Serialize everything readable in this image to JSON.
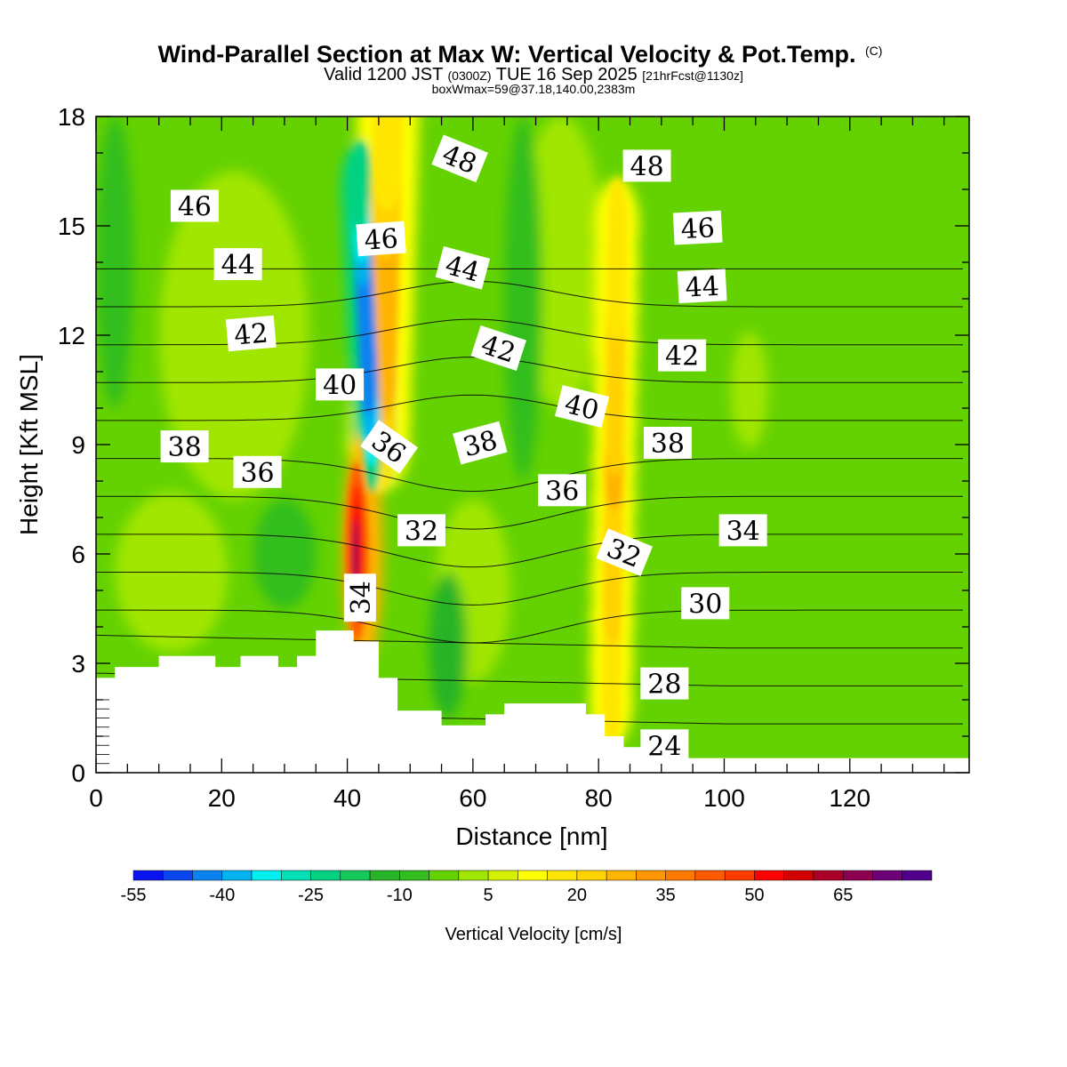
{
  "chart_data": {
    "type": "heatmap",
    "title": "Wind-Parallel Section at Max W: Vertical Velocity & Pot.Temp.",
    "title_mark": "(C)",
    "subtitle": {
      "prefix": "Valid 1200 JST",
      "zulu": "(0300Z)",
      "date": "TUE 16 Sep 2025",
      "forecast": "[21hrFcst@1130z]"
    },
    "box_info": "boxWmax=59@37.18,140.00,2383m",
    "xlabel": "Distance [nm]",
    "ylabel": "Height [Kft MSL]",
    "xlim": [
      0,
      139
    ],
    "ylim": [
      0,
      18
    ],
    "x_ticks": [
      0,
      20,
      40,
      60,
      80,
      100,
      120
    ],
    "y_ticks": [
      0,
      3,
      6,
      9,
      12,
      15,
      18
    ],
    "colorbar": {
      "title": "Vertical Velocity [cm/s]",
      "min": -55,
      "max": 80,
      "step": 5,
      "labels": [
        "-55",
        "-40",
        "-25",
        "-10",
        "5",
        "20",
        "35",
        "50",
        "65"
      ],
      "colors": [
        "#0a14f0",
        "#0a46f0",
        "#0a82f0",
        "#00b4f0",
        "#00f0f0",
        "#00e0b4",
        "#00d282",
        "#14c85a",
        "#28b428",
        "#32be1e",
        "#64d200",
        "#a0e600",
        "#d2f000",
        "#ffff00",
        "#ffe600",
        "#ffd200",
        "#ffb400",
        "#ff9600",
        "#ff7800",
        "#ff5a00",
        "#ff3c00",
        "#ff0000",
        "#d20000",
        "#aa0028",
        "#8c0050",
        "#6e0078",
        "#50008c"
      ]
    },
    "terrain": [
      [
        0,
        2.6
      ],
      [
        3,
        2.6
      ],
      [
        3,
        2.9
      ],
      [
        10,
        2.9
      ],
      [
        10,
        3.2
      ],
      [
        19,
        3.2
      ],
      [
        19,
        2.9
      ],
      [
        23,
        2.9
      ],
      [
        23,
        3.2
      ],
      [
        29,
        3.2
      ],
      [
        29,
        2.9
      ],
      [
        32,
        2.9
      ],
      [
        32,
        3.2
      ],
      [
        35,
        3.2
      ],
      [
        35,
        3.9
      ],
      [
        41,
        3.9
      ],
      [
        41,
        3.6
      ],
      [
        45,
        3.6
      ],
      [
        45,
        2.6
      ],
      [
        48,
        2.6
      ],
      [
        48,
        1.7
      ],
      [
        55,
        1.7
      ],
      [
        55,
        1.3
      ],
      [
        62,
        1.3
      ],
      [
        62,
        1.6
      ],
      [
        65,
        1.6
      ],
      [
        65,
        1.9
      ],
      [
        78,
        1.9
      ],
      [
        78,
        1.6
      ],
      [
        81,
        1.6
      ],
      [
        81,
        1.0
      ],
      [
        84,
        1.0
      ],
      [
        84,
        0.7
      ],
      [
        90,
        0.7
      ],
      [
        90,
        0.4
      ],
      [
        139,
        0.4
      ]
    ],
    "vertical_velocity_features": [
      {
        "name": "updraft-core",
        "max": 59,
        "x": 41.5,
        "y": [
          3.8,
          8.3
        ]
      },
      {
        "name": "upper-updraft-band",
        "max": 30,
        "x_base": 45,
        "y_base": 9,
        "x_top": 46.5,
        "y_top": 18
      },
      {
        "name": "downdraft-band",
        "min": -45,
        "x_base": 44,
        "y_base": 9,
        "x_top": 42,
        "y_top": 16
      },
      {
        "name": "eastern-updraft-band",
        "max": 25,
        "x_base": 82,
        "y_base": 2,
        "x_top": 83,
        "y_top": 15
      }
    ],
    "potential_temperature": {
      "contour_interval": 2,
      "label_positions": [
        {
          "value": "24",
          "x": 90.5,
          "y": 0.7,
          "angle": 0
        },
        {
          "value": "28",
          "x": 90.5,
          "y": 2.4,
          "angle": 0
        },
        {
          "value": "30",
          "x": 97.0,
          "y": 4.6,
          "angle": 0
        },
        {
          "value": "32",
          "x": 51.8,
          "y": 6.6,
          "angle": 0
        },
        {
          "value": "32",
          "x": 84.0,
          "y": 6.0,
          "angle": 22
        },
        {
          "value": "34",
          "x": 42.3,
          "y": 4.8,
          "angle": -90
        },
        {
          "value": "34",
          "x": 103.0,
          "y": 6.6,
          "angle": 0
        },
        {
          "value": "36",
          "x": 25.7,
          "y": 8.2,
          "angle": 0
        },
        {
          "value": "36",
          "x": 46.5,
          "y": 8.9,
          "angle": 35
        },
        {
          "value": "36",
          "x": 74.2,
          "y": 7.7,
          "angle": 0
        },
        {
          "value": "38",
          "x": 14.1,
          "y": 8.9,
          "angle": 0
        },
        {
          "value": "38",
          "x": 61.2,
          "y": 9.0,
          "angle": -15
        },
        {
          "value": "38",
          "x": 91.0,
          "y": 9.0,
          "angle": 0
        },
        {
          "value": "40",
          "x": 38.8,
          "y": 10.6,
          "angle": 0
        },
        {
          "value": "40",
          "x": 77.3,
          "y": 10.0,
          "angle": 14
        },
        {
          "value": "42",
          "x": 24.7,
          "y": 12.0,
          "angle": -5
        },
        {
          "value": "42",
          "x": 64.0,
          "y": 11.6,
          "angle": 18
        },
        {
          "value": "42",
          "x": 93.3,
          "y": 11.4,
          "angle": 0
        },
        {
          "value": "44",
          "x": 22.6,
          "y": 13.9,
          "angle": 0
        },
        {
          "value": "44",
          "x": 58.3,
          "y": 13.8,
          "angle": 15
        },
        {
          "value": "44",
          "x": 96.5,
          "y": 13.3,
          "angle": -3
        },
        {
          "value": "46",
          "x": 15.7,
          "y": 15.5,
          "angle": 0
        },
        {
          "value": "46",
          "x": 45.4,
          "y": 14.6,
          "angle": -4
        },
        {
          "value": "46",
          "x": 95.8,
          "y": 14.9,
          "angle": -3
        },
        {
          "value": "48",
          "x": 57.8,
          "y": 16.8,
          "angle": 22
        },
        {
          "value": "48",
          "x": 87.7,
          "y": 16.6,
          "angle": 0
        }
      ]
    }
  }
}
